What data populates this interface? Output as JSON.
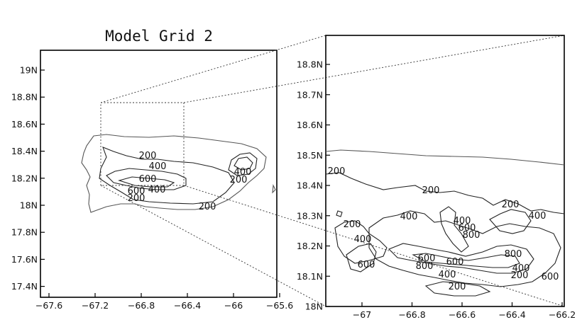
{
  "title": "Model Grid 2",
  "left_map": {
    "lat_ticks": [
      "19N",
      "18.8N",
      "18.6N",
      "18.4N",
      "18.2N",
      "18N",
      "17.8N",
      "17.6N",
      "17.4N"
    ],
    "lon_ticks": [
      "−67.6",
      "−67.2",
      "−66.8",
      "−66.4",
      "−66",
      "−65.6"
    ],
    "contour_labels": [
      {
        "id": "l200a",
        "text": "200"
      },
      {
        "id": "l400a",
        "text": "400"
      },
      {
        "id": "l600a",
        "text": "600"
      },
      {
        "id": "l600b",
        "text": "600"
      },
      {
        "id": "l400b",
        "text": "400"
      },
      {
        "id": "l200b",
        "text": "200"
      },
      {
        "id": "l200c",
        "text": "200"
      },
      {
        "id": "l400c",
        "text": "400"
      },
      {
        "id": "l200d",
        "text": "200"
      }
    ]
  },
  "right_map": {
    "lat_ticks": [
      "18.8N",
      "18.7N",
      "18.6N",
      "18.5N",
      "18.4N",
      "18.3N",
      "18.2N",
      "18.1N",
      "18N"
    ],
    "lon_ticks": [
      "−67",
      "−66.8",
      "−66.6",
      "−66.4",
      "−66.2"
    ],
    "contour_labels": [
      {
        "id": "r200a",
        "text": "200"
      },
      {
        "id": "r200b",
        "text": "200"
      },
      {
        "id": "r200c",
        "text": "200"
      },
      {
        "id": "r400a",
        "text": "400"
      },
      {
        "id": "r200d",
        "text": "200"
      },
      {
        "id": "r400b",
        "text": "400"
      },
      {
        "id": "r400c",
        "text": "400"
      },
      {
        "id": "r600a",
        "text": "600"
      },
      {
        "id": "r800a",
        "text": "800"
      },
      {
        "id": "r400d",
        "text": "400"
      },
      {
        "id": "r600b",
        "text": "600"
      },
      {
        "id": "r800b",
        "text": "800"
      },
      {
        "id": "r600c",
        "text": "600"
      },
      {
        "id": "r600d",
        "text": "600"
      },
      {
        "id": "r800c",
        "text": "800"
      },
      {
        "id": "r400e",
        "text": "400"
      },
      {
        "id": "r200e",
        "text": "200"
      },
      {
        "id": "r400f",
        "text": "400"
      },
      {
        "id": "r200f",
        "text": "200"
      },
      {
        "id": "r600e",
        "text": "600"
      }
    ]
  }
}
